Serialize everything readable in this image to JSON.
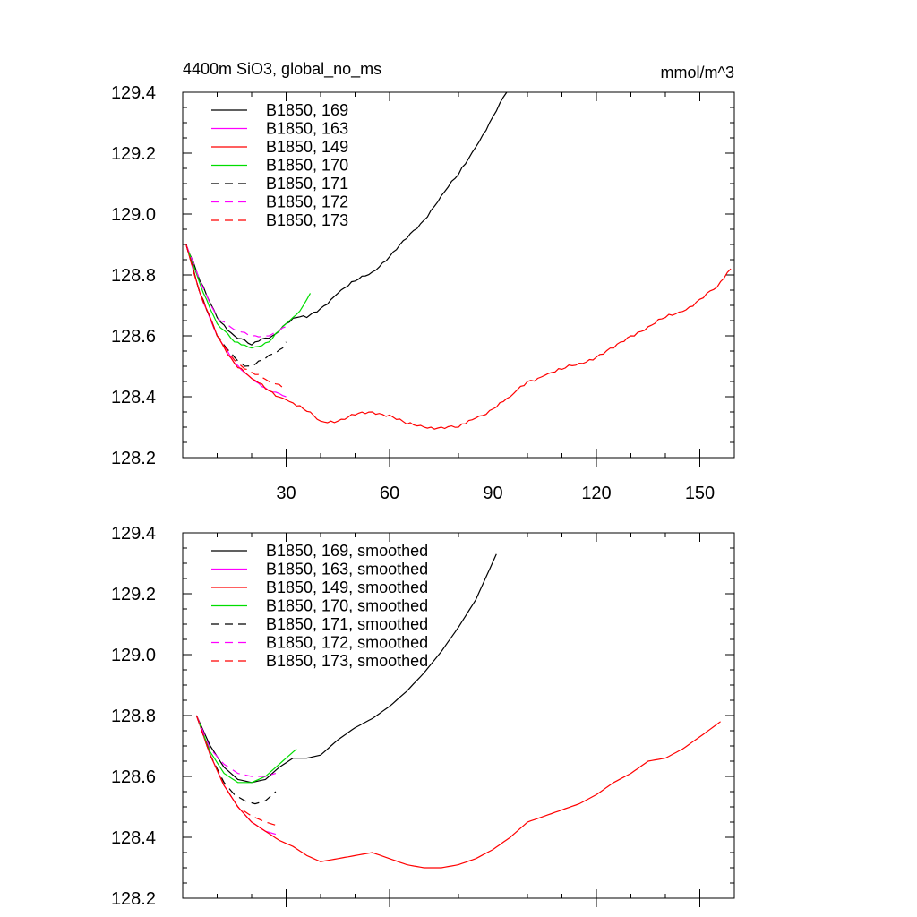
{
  "figure": {
    "title_left": "4400m SiO3, global_no_ms",
    "title_right": "mmol/m^3"
  },
  "chart_data": [
    {
      "type": "line",
      "ylim": [
        128.2,
        129.4
      ],
      "xlim": [
        0,
        160
      ],
      "yticks": [
        128.2,
        128.4,
        128.6,
        128.8,
        129.0,
        129.2,
        129.4
      ],
      "ytick_labels": [
        "128.2",
        "128.4",
        "128.6",
        "128.8",
        "129.0",
        "129.2",
        "129.4"
      ],
      "xticks": [
        30,
        60,
        90,
        120,
        150
      ],
      "xtick_labels": [
        "30",
        "60",
        "90",
        "120",
        "150"
      ],
      "legend_position": "top-left",
      "series": [
        {
          "name": "B1850, 169",
          "color": "#000000",
          "dash": "solid",
          "noise": 0.006,
          "x": [
            1,
            5,
            10,
            15,
            20,
            23,
            26,
            30,
            33,
            36,
            40,
            45,
            50,
            55,
            60,
            65,
            70,
            75,
            80,
            85,
            90,
            94
          ],
          "y": [
            128.9,
            128.78,
            128.66,
            128.6,
            128.57,
            128.59,
            128.6,
            128.64,
            128.66,
            128.66,
            128.69,
            128.74,
            128.78,
            128.81,
            128.86,
            128.92,
            128.98,
            129.06,
            129.13,
            129.22,
            129.32,
            129.4
          ]
        },
        {
          "name": "B1850, 163",
          "color": "#ff00ff",
          "dash": "solid",
          "noise": 0.004,
          "x": [
            1,
            5,
            10,
            15,
            20,
            25,
            30
          ],
          "y": [
            128.9,
            128.74,
            128.6,
            128.51,
            128.46,
            128.42,
            128.4
          ]
        },
        {
          "name": "B1850, 149",
          "color": "#ff0000",
          "dash": "solid",
          "noise": 0.007,
          "x": [
            1,
            5,
            10,
            15,
            20,
            25,
            30,
            35,
            40,
            45,
            50,
            55,
            60,
            65,
            70,
            75,
            80,
            85,
            90,
            95,
            100,
            105,
            110,
            115,
            120,
            125,
            130,
            135,
            140,
            145,
            150,
            155,
            159
          ],
          "y": [
            128.9,
            128.74,
            128.6,
            128.51,
            128.46,
            128.42,
            128.39,
            128.36,
            128.32,
            128.32,
            128.34,
            128.35,
            128.34,
            128.31,
            128.3,
            128.3,
            128.3,
            128.33,
            128.36,
            128.4,
            128.45,
            128.47,
            128.49,
            128.51,
            128.53,
            128.56,
            128.6,
            128.63,
            128.66,
            128.68,
            128.72,
            128.76,
            128.82
          ]
        },
        {
          "name": "B1850, 170",
          "color": "#00dd00",
          "dash": "solid",
          "noise": 0.005,
          "x": [
            1,
            5,
            10,
            15,
            20,
            25,
            30,
            33,
            35,
            37
          ],
          "y": [
            128.9,
            128.77,
            128.64,
            128.58,
            128.56,
            128.58,
            128.64,
            128.67,
            128.7,
            128.74
          ]
        },
        {
          "name": "B1850, 171",
          "color": "#000000",
          "dash": "dashed",
          "noise": 0.005,
          "x": [
            1,
            5,
            10,
            15,
            18,
            20,
            23,
            26,
            29,
            30
          ],
          "y": [
            128.9,
            128.74,
            128.6,
            128.53,
            128.5,
            128.5,
            128.52,
            128.54,
            128.56,
            128.58
          ]
        },
        {
          "name": "B1850, 172",
          "color": "#ff00ff",
          "dash": "dashed",
          "noise": 0.004,
          "x": [
            1,
            5,
            10,
            15,
            20,
            25,
            30
          ],
          "y": [
            128.9,
            128.78,
            128.66,
            128.62,
            128.6,
            128.6,
            128.63
          ]
        },
        {
          "name": "B1850, 173",
          "color": "#ff0000",
          "dash": "dashed",
          "noise": 0.006,
          "x": [
            1,
            5,
            10,
            15,
            20,
            25,
            30
          ],
          "y": [
            128.9,
            128.74,
            128.6,
            128.52,
            128.48,
            128.45,
            128.43
          ]
        }
      ]
    },
    {
      "type": "line",
      "ylim": [
        128.2,
        129.4
      ],
      "xlim": [
        0,
        160
      ],
      "yticks": [
        128.2,
        128.4,
        128.6,
        128.8,
        129.0,
        129.2,
        129.4
      ],
      "ytick_labels": [
        "128.2",
        "128.4",
        "128.6",
        "128.8",
        "129.0",
        "129.2",
        "129.4"
      ],
      "xticks": [
        30,
        60,
        90,
        120,
        150
      ],
      "xtick_labels": [],
      "legend_position": "top-left",
      "series": [
        {
          "name": "B1850, 169, smoothed",
          "color": "#000000",
          "dash": "solid",
          "x": [
            4,
            8,
            12,
            16,
            20,
            24,
            28,
            32,
            36,
            40,
            45,
            50,
            55,
            60,
            65,
            70,
            75,
            80,
            85,
            91
          ],
          "y": [
            128.8,
            128.7,
            128.63,
            128.59,
            128.58,
            128.59,
            128.63,
            128.66,
            128.66,
            128.67,
            128.72,
            128.76,
            128.79,
            128.83,
            128.88,
            128.94,
            129.01,
            129.09,
            129.18,
            129.33
          ]
        },
        {
          "name": "B1850, 163, smoothed",
          "color": "#ff00ff",
          "dash": "solid",
          "x": [
            4,
            8,
            12,
            16,
            20,
            24,
            27
          ],
          "y": [
            128.8,
            128.67,
            128.57,
            128.5,
            128.45,
            128.42,
            128.41
          ]
        },
        {
          "name": "B1850, 149, smoothed",
          "color": "#ff0000",
          "dash": "solid",
          "x": [
            4,
            8,
            12,
            16,
            20,
            24,
            28,
            32,
            36,
            40,
            45,
            50,
            55,
            60,
            65,
            70,
            75,
            80,
            85,
            90,
            95,
            100,
            105,
            110,
            115,
            120,
            125,
            130,
            135,
            140,
            145,
            150,
            156
          ],
          "y": [
            128.8,
            128.67,
            128.57,
            128.5,
            128.45,
            128.42,
            128.39,
            128.37,
            128.34,
            128.32,
            128.33,
            128.34,
            128.35,
            128.33,
            128.31,
            128.3,
            128.3,
            128.31,
            128.33,
            128.36,
            128.4,
            128.45,
            128.47,
            128.49,
            128.51,
            128.54,
            128.58,
            128.61,
            128.65,
            128.66,
            128.69,
            128.73,
            128.78
          ]
        },
        {
          "name": "B1850, 170, smoothed",
          "color": "#00dd00",
          "dash": "solid",
          "x": [
            4,
            8,
            12,
            16,
            20,
            24,
            28,
            31,
            33
          ],
          "y": [
            128.8,
            128.68,
            128.61,
            128.58,
            128.58,
            128.6,
            128.64,
            128.67,
            128.69
          ]
        },
        {
          "name": "B1850, 171, smoothed",
          "color": "#000000",
          "dash": "dashed",
          "x": [
            4,
            8,
            12,
            15,
            18,
            21,
            24,
            27
          ],
          "y": [
            128.8,
            128.67,
            128.58,
            128.54,
            128.52,
            128.51,
            128.52,
            128.55
          ]
        },
        {
          "name": "B1850, 172, smoothed",
          "color": "#ff00ff",
          "dash": "dashed",
          "x": [
            4,
            8,
            12,
            16,
            20,
            24,
            27
          ],
          "y": [
            128.8,
            128.69,
            128.64,
            128.61,
            128.6,
            128.6,
            128.61
          ]
        },
        {
          "name": "B1850, 173, smoothed",
          "color": "#ff0000",
          "dash": "dashed",
          "x": [
            4,
            8,
            12,
            16,
            20,
            24,
            27
          ],
          "y": [
            128.8,
            128.67,
            128.57,
            128.5,
            128.47,
            128.45,
            128.44
          ]
        }
      ]
    }
  ]
}
